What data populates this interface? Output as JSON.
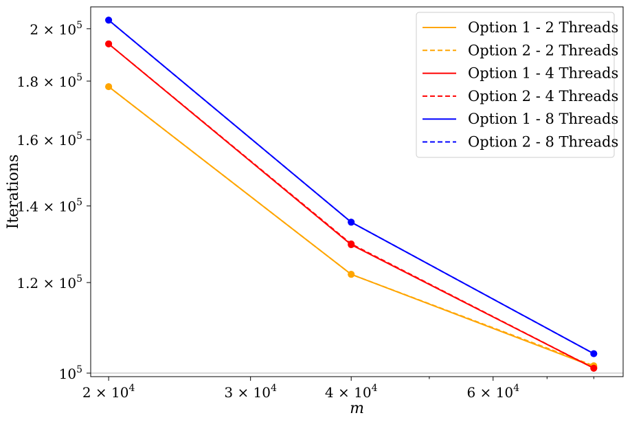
{
  "chart_data": {
    "type": "line",
    "xlabel": "m",
    "ylabel": "Iterations",
    "xscale": "log",
    "yscale": "log",
    "xlim": [
      19000,
      87000
    ],
    "ylim": [
      99300,
      209000
    ],
    "x": [
      20000,
      40000,
      80000
    ],
    "xticks": [
      {
        "value": 20000,
        "mantissa": "2",
        "exp": "4"
      },
      {
        "value": 30000,
        "mantissa": "3",
        "exp": "4"
      },
      {
        "value": 40000,
        "mantissa": "4",
        "exp": "4"
      },
      {
        "value": 60000,
        "mantissa": "6",
        "exp": "4"
      }
    ],
    "yticks": [
      {
        "value": 100000,
        "mantissa": "",
        "exp": "5"
      },
      {
        "value": 120000,
        "mantissa": "1.2",
        "exp": "5"
      },
      {
        "value": 140000,
        "mantissa": "1.4",
        "exp": "5"
      },
      {
        "value": 160000,
        "mantissa": "1.6",
        "exp": "5"
      },
      {
        "value": 180000,
        "mantissa": "1.8",
        "exp": "5"
      },
      {
        "value": 200000,
        "mantissa": "2",
        "exp": "5"
      }
    ],
    "legend_position": "top-right",
    "grid": false,
    "series": [
      {
        "name": "Option 1 - 2 Threads",
        "color": "#FFA500",
        "dash": "solid",
        "values": [
          178000,
          122000,
          101300
        ]
      },
      {
        "name": "Option 2 - 2 Threads",
        "color": "#FFA500",
        "dash": "dashed",
        "values": [
          178000,
          122000,
          101500
        ]
      },
      {
        "name": "Option 1 - 4 Threads",
        "color": "#FF0000",
        "dash": "solid",
        "values": [
          194000,
          129500,
          101000
        ]
      },
      {
        "name": "Option 2 - 4 Threads",
        "color": "#FF0000",
        "dash": "dashed",
        "values": [
          194000,
          129700,
          101000
        ]
      },
      {
        "name": "Option 1 - 8 Threads",
        "color": "#0000FF",
        "dash": "solid",
        "values": [
          203500,
          135500,
          104000
        ]
      },
      {
        "name": "Option 2 - 8 Threads",
        "color": "#0000FF",
        "dash": "dashed",
        "values": [
          203500,
          135500,
          104000
        ]
      }
    ]
  }
}
